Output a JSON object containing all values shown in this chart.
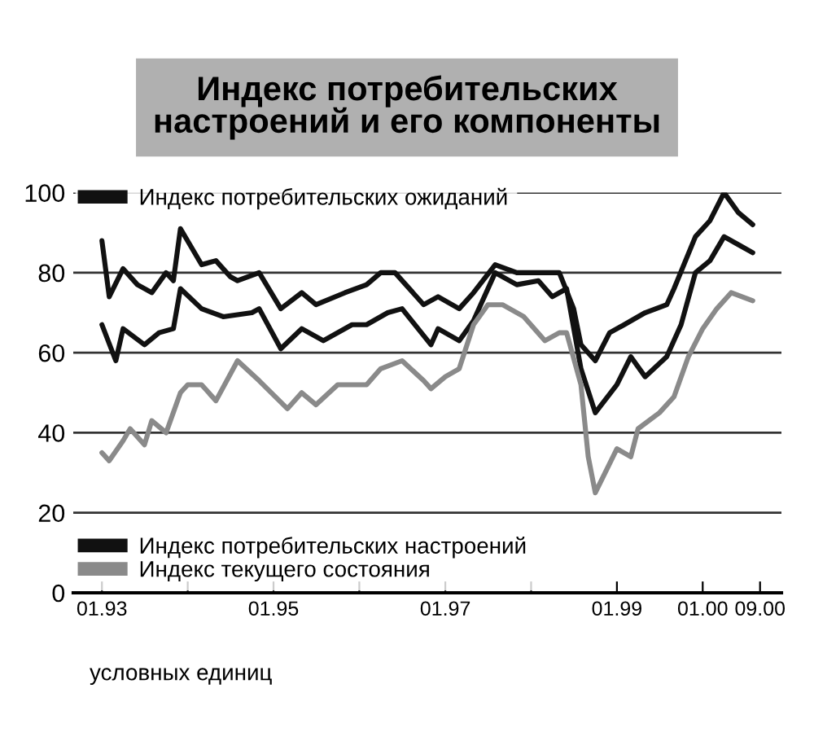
{
  "chart_data": {
    "type": "line",
    "title": "Индекс потребительских\nнастроений и его компоненты",
    "annotations": [
      "условных единиц"
    ],
    "series": [
      {
        "name": "Индекс потребительских ожиданий",
        "color": "#111111",
        "x": [
          "1993-01",
          "1993-02",
          "1993-04",
          "1993-06",
          "1993-08",
          "1993-10",
          "1993-11",
          "1993-12",
          "1994-03",
          "1994-05",
          "1994-07",
          "1994-08",
          "1994-11",
          "1995-02",
          "1995-05",
          "1995-07",
          "1995-11",
          "1996-02",
          "1996-04",
          "1996-06",
          "1996-10",
          "1996-12",
          "1997-03",
          "1997-05",
          "1997-08",
          "1997-11",
          "1998-02",
          "1998-05",
          "1998-07",
          "1998-08",
          "1998-10",
          "1998-12",
          "1999-02",
          "1999-05",
          "1999-08",
          "1999-09",
          "1999-12",
          "2000-02",
          "2000-04",
          "2000-06",
          "2000-08"
        ],
        "values": [
          88,
          74,
          81,
          77,
          75,
          80,
          78,
          91,
          82,
          83,
          79,
          78,
          80,
          71,
          75,
          72,
          75,
          77,
          80,
          80,
          72,
          74,
          71,
          75,
          82,
          80,
          80,
          80,
          71,
          62,
          58,
          65,
          67,
          70,
          72,
          76,
          89,
          93,
          100,
          95,
          92
        ]
      },
      {
        "name": "Индекс потребительских настроений",
        "color": "#111111",
        "x": [
          "1993-01",
          "1993-03",
          "1993-04",
          "1993-07",
          "1993-09",
          "1993-11",
          "1993-12",
          "1994-03",
          "1994-06",
          "1994-10",
          "1994-11",
          "1995-02",
          "1995-05",
          "1995-08",
          "1995-12",
          "1996-02",
          "1996-05",
          "1996-07",
          "1996-11",
          "1996-12",
          "1997-03",
          "1997-05",
          "1997-08",
          "1997-11",
          "1998-02",
          "1998-04",
          "1998-06",
          "1998-08",
          "1998-10",
          "1999-01",
          "1999-03",
          "1999-05",
          "1999-08",
          "1999-10",
          "1999-12",
          "2000-02",
          "2000-04",
          "2000-06",
          "2000-08"
        ],
        "values": [
          67,
          58,
          66,
          62,
          65,
          66,
          76,
          71,
          69,
          70,
          71,
          61,
          66,
          63,
          67,
          67,
          70,
          71,
          62,
          66,
          63,
          68,
          80,
          77,
          78,
          74,
          76,
          56,
          45,
          52,
          59,
          54,
          59,
          67,
          80,
          83,
          89,
          87,
          85
        ]
      },
      {
        "name": "Индекс текущего состояния",
        "color": "#8a8a8a",
        "x": [
          "1993-01",
          "1993-02",
          "1993-04",
          "1993-05",
          "1993-07",
          "1993-08",
          "1993-10",
          "1993-12",
          "1994-01",
          "1994-03",
          "1994-05",
          "1994-08",
          "1994-11",
          "1995-03",
          "1995-05",
          "1995-07",
          "1995-10",
          "1996-02",
          "1996-04",
          "1996-07",
          "1996-10",
          "1996-11",
          "1997-01",
          "1997-03",
          "1997-05",
          "1997-07",
          "1997-09",
          "1997-12",
          "1998-03",
          "1998-05",
          "1998-06",
          "1998-08",
          "1998-09",
          "1998-10",
          "1999-01",
          "1999-03",
          "1999-04",
          "1999-07",
          "1999-09",
          "1999-11",
          "2000-01",
          "2000-03",
          "2000-05",
          "2000-08"
        ],
        "values": [
          35,
          33,
          38,
          41,
          37,
          43,
          40,
          50,
          52,
          52,
          48,
          58,
          53,
          46,
          50,
          47,
          52,
          52,
          56,
          58,
          53,
          51,
          54,
          56,
          67,
          72,
          72,
          69,
          63,
          65,
          65,
          52,
          34,
          25,
          36,
          34,
          41,
          45,
          49,
          59,
          66,
          71,
          75,
          73
        ]
      }
    ],
    "xlim": [
      "1992-09",
      "2000-12"
    ],
    "xticks": [
      {
        "value": "1993-01",
        "label": "01.93"
      },
      {
        "value": "1994-01",
        "label": null
      },
      {
        "value": "1995-01",
        "label": "01.95"
      },
      {
        "value": "1996-01",
        "label": null
      },
      {
        "value": "1997-01",
        "label": "01.97"
      },
      {
        "value": "1998-01",
        "label": null
      },
      {
        "value": "1999-01",
        "label": "01.99"
      },
      {
        "value": "2000-01",
        "label": "01.00"
      },
      {
        "value": "2000-09",
        "label": "09.00"
      }
    ],
    "ylim": [
      0,
      100
    ],
    "yticks": [
      0,
      20,
      40,
      60,
      80,
      100
    ],
    "grid": "y",
    "legend": "top left",
    "line_style": "solid",
    "marker": "none"
  }
}
